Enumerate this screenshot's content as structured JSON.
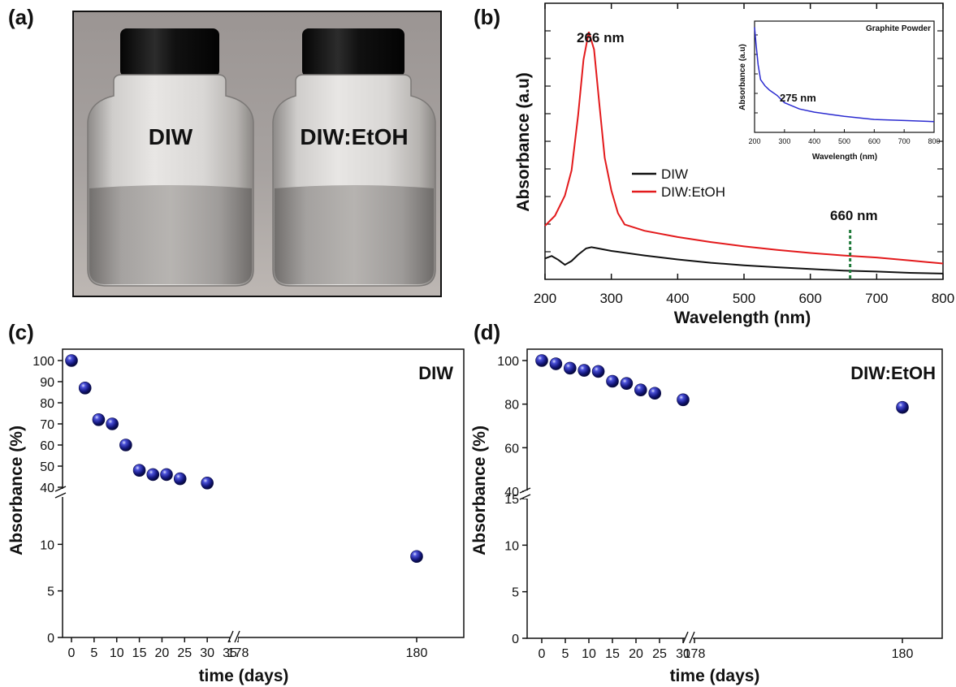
{
  "panels": {
    "a": {
      "letter": "(a)",
      "vials": [
        {
          "label": "DIW"
        },
        {
          "label": "DIW:EtOH"
        }
      ]
    },
    "b": {
      "letter": "(b)",
      "peak_annotation": "266 nm",
      "marker_annotation": "660 nm",
      "inset": {
        "title": "Graphite Powder",
        "peak_annotation": "275 nm"
      }
    },
    "c": {
      "letter": "(c)",
      "corner_label": "DIW"
    },
    "d": {
      "letter": "(d)",
      "corner_label": "DIW:EtOH"
    }
  },
  "colors": {
    "diw": "#111111",
    "diw_etoh": "#e31a1c",
    "graphite": "#2b2bd0",
    "marker_line": "#1f7a3a",
    "sphere": "#12157a"
  },
  "chart_data": [
    {
      "id": "b-main",
      "type": "line",
      "xlabel": "Wavelength (nm)",
      "ylabel": "Absorbance (a.u)",
      "xlim": [
        200,
        800
      ],
      "xticks": [
        200,
        300,
        400,
        500,
        600,
        700,
        800
      ],
      "y_tick_labels_shown": false,
      "ylim": [
        0,
        1
      ],
      "legend_position": "center",
      "series": [
        {
          "name": "DIW",
          "color": "#111111",
          "points": [
            [
              200,
              0.07
            ],
            [
              210,
              0.08
            ],
            [
              220,
              0.065
            ],
            [
              230,
              0.045
            ],
            [
              240,
              0.06
            ],
            [
              250,
              0.085
            ],
            [
              262,
              0.11
            ],
            [
              270,
              0.115
            ],
            [
              280,
              0.11
            ],
            [
              300,
              0.1
            ],
            [
              350,
              0.082
            ],
            [
              400,
              0.066
            ],
            [
              450,
              0.053
            ],
            [
              500,
              0.043
            ],
            [
              550,
              0.035
            ],
            [
              600,
              0.028
            ],
            [
              650,
              0.022
            ],
            [
              700,
              0.018
            ],
            [
              750,
              0.013
            ],
            [
              800,
              0.01
            ]
          ]
        },
        {
          "name": "DIW:EtOH",
          "color": "#e31a1c",
          "points": [
            [
              200,
              0.2
            ],
            [
              215,
              0.24
            ],
            [
              230,
              0.32
            ],
            [
              240,
              0.42
            ],
            [
              250,
              0.64
            ],
            [
              258,
              0.86
            ],
            [
              266,
              0.97
            ],
            [
              274,
              0.9
            ],
            [
              282,
              0.68
            ],
            [
              290,
              0.47
            ],
            [
              300,
              0.34
            ],
            [
              310,
              0.25
            ],
            [
              320,
              0.205
            ],
            [
              350,
              0.18
            ],
            [
              400,
              0.155
            ],
            [
              450,
              0.135
            ],
            [
              500,
              0.118
            ],
            [
              550,
              0.104
            ],
            [
              600,
              0.092
            ],
            [
              650,
              0.082
            ],
            [
              700,
              0.074
            ],
            [
              750,
              0.062
            ],
            [
              800,
              0.05
            ]
          ]
        }
      ],
      "annotations": [
        "266 nm",
        "660 nm"
      ],
      "vertical_marker_x": 660
    },
    {
      "id": "b-inset",
      "type": "line",
      "title": "Graphite Powder",
      "xlabel": "Wavelength (nm)",
      "ylabel": "Absorbance (a.u)",
      "xlim": [
        200,
        800
      ],
      "xticks": [
        200,
        300,
        400,
        500,
        600,
        700,
        800
      ],
      "ylim": [
        0,
        1
      ],
      "series": [
        {
          "color": "#2b2bd0",
          "points": [
            [
              200,
              0.98
            ],
            [
              205,
              0.82
            ],
            [
              212,
              0.62
            ],
            [
              220,
              0.48
            ],
            [
              235,
              0.42
            ],
            [
              250,
              0.38
            ],
            [
              275,
              0.33
            ],
            [
              300,
              0.26
            ],
            [
              350,
              0.2
            ],
            [
              400,
              0.17
            ],
            [
              450,
              0.15
            ],
            [
              500,
              0.13
            ],
            [
              600,
              0.1
            ],
            [
              700,
              0.09
            ],
            [
              800,
              0.08
            ]
          ]
        }
      ],
      "annotations": [
        "275 nm"
      ]
    },
    {
      "id": "c",
      "type": "scatter",
      "xlabel": "time (days)",
      "ylabel": "Absorbance (%)",
      "x_break": [
        35,
        178
      ],
      "y_break": [
        15,
        40
      ],
      "xticks": [
        "0",
        "5",
        "10",
        "15",
        "20",
        "25",
        "30",
        "35",
        "178",
        "180"
      ],
      "yticks_lower": [
        "0",
        "5",
        "10"
      ],
      "yticks_upper": [
        "40",
        "50",
        "60",
        "70",
        "80",
        "90",
        "100"
      ],
      "x": [
        0,
        3,
        6,
        9,
        12,
        15,
        18,
        21,
        24,
        30,
        180
      ],
      "y": [
        100,
        87,
        72,
        70,
        60,
        48,
        46,
        46,
        44,
        42,
        8.7
      ]
    },
    {
      "id": "d",
      "type": "scatter",
      "xlabel": "time (days)",
      "ylabel": "Absorbance (%)",
      "x_break": [
        30,
        178
      ],
      "y_break": [
        15,
        40
      ],
      "xticks": [
        "0",
        "5",
        "10",
        "15",
        "20",
        "25",
        "30",
        "178",
        "180"
      ],
      "yticks_lower": [
        "0",
        "5",
        "10",
        "15"
      ],
      "yticks_upper": [
        "40",
        "60",
        "80",
        "100"
      ],
      "x": [
        0,
        3,
        6,
        9,
        12,
        15,
        18,
        21,
        24,
        30,
        180
      ],
      "y": [
        100,
        98.5,
        96.5,
        95.5,
        95,
        90.5,
        89.5,
        86.5,
        85,
        82,
        78.5
      ]
    }
  ]
}
